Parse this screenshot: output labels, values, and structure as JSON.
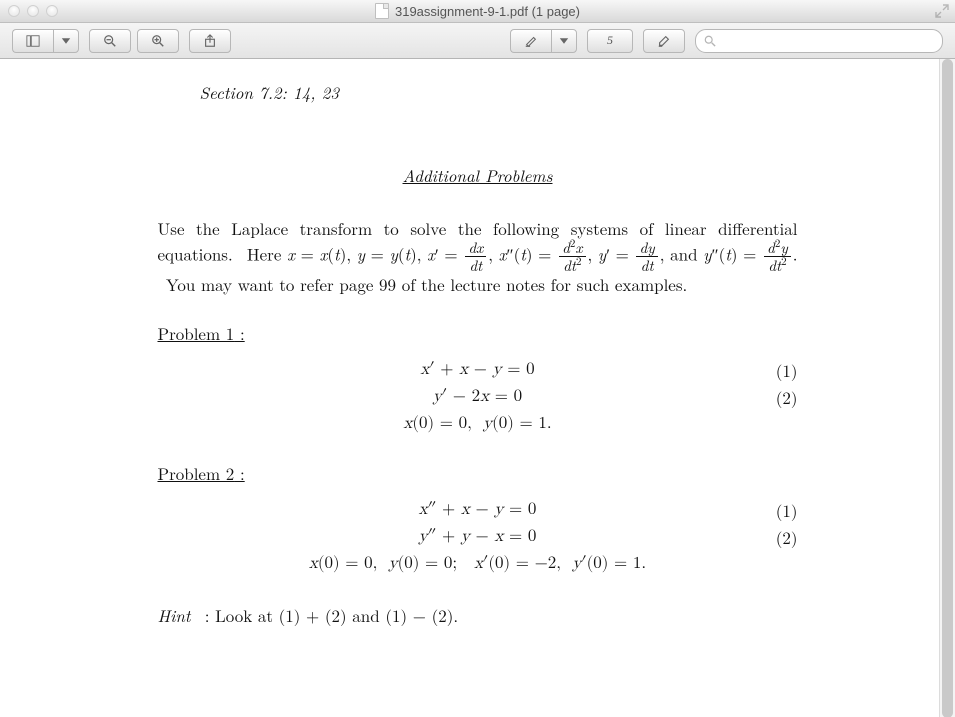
{
  "window": {
    "title": "319assignment-9-1.pdf (1 page)"
  },
  "toolbar": {
    "page_indicator": "5",
    "search_placeholder": ""
  },
  "doc": {
    "section_line": "Section 7.2: 14, 23",
    "additional_heading": "Additional Problems",
    "intro_html": "Use the Laplace transform to solve the following systems of linear differential equations.  Here <span class=\"mi\">x</span> = <span class=\"mi\">x</span>(<span class=\"mi\">t</span>), <span class=\"mi\">y</span> = <span class=\"mi\">y</span>(<span class=\"mi\">t</span>), <span class=\"mi\">x</span>′ = <span class=\"frac\"><span class=\"num\"><span class=\"mi\">dx</span></span><span class=\"den\"><span class=\"mi\">dt</span></span></span>, <span class=\"mi\">x</span>″(<span class=\"mi\">t</span>) = <span class=\"frac\"><span class=\"num\"><span class=\"mi\">d</span><sup>2</sup><span class=\"mi\">x</span></span><span class=\"den\"><span class=\"mi\">dt</span><sup>2</sup></span></span>, <span class=\"mi\">y</span>′ = <span class=\"frac\"><span class=\"num\"><span class=\"mi\">dy</span></span><span class=\"den\"><span class=\"mi\">dt</span></span></span>, and <span class=\"mi\">y</span>″(<span class=\"mi\">t</span>) = <span class=\"frac\"><span class=\"num\"><span class=\"mi\">d</span><sup>2</sup><span class=\"mi\">y</span></span><span class=\"den\"><span class=\"mi\">dt</span><sup>2</sup></span></span>.  You may want to refer page 99 of the lecture notes for such examples.",
    "problems": [
      {
        "title": "Problem 1",
        "equations": [
          {
            "tex": "<span class=\"mi\">x</span>′ + <span class=\"mi\">x</span> − <span class=\"mi\">y</span> = 0",
            "num": "(1)"
          },
          {
            "tex": "<span class=\"mi\">y</span>′ − 2<span class=\"mi\">x</span> = 0",
            "num": "(2)"
          },
          {
            "tex": "<span class=\"mi\">x</span>(0) = 0, &nbsp;<span class=\"mi\">y</span>(0) = 1.",
            "num": ""
          }
        ]
      },
      {
        "title": "Problem 2",
        "equations": [
          {
            "tex": "<span class=\"mi\">x</span>″ + <span class=\"mi\">x</span> − <span class=\"mi\">y</span> = 0",
            "num": "(1)"
          },
          {
            "tex": "<span class=\"mi\">y</span>″ + <span class=\"mi\">y</span> − <span class=\"mi\">x</span> = 0",
            "num": "(2)"
          },
          {
            "tex": "<span class=\"mi\">x</span>(0) = 0, &nbsp;<span class=\"mi\">y</span>(0) = 0; &nbsp;&nbsp;<span class=\"mi\">x</span>′(0) = −2, &nbsp;<span class=\"mi\">y</span>′(0) = 1.",
            "num": ""
          }
        ]
      }
    ],
    "hint_html": "<span class=\"h\">Hint</span> &nbsp;: Look at (1) + (2) and (1) − (2)."
  }
}
